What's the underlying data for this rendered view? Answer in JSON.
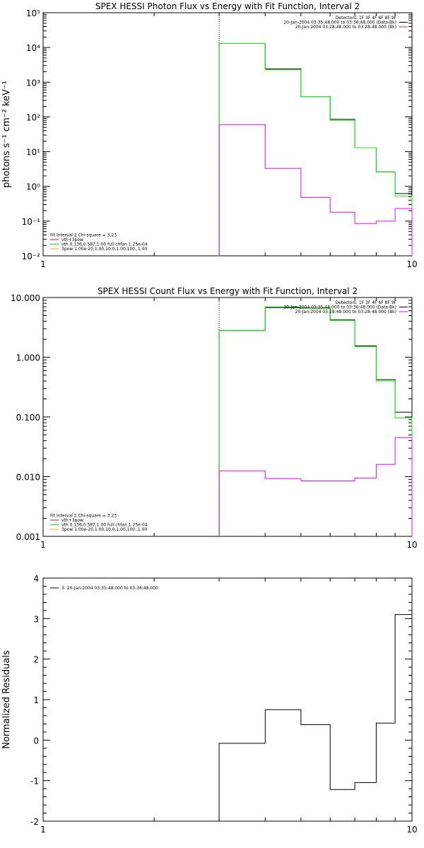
{
  "chart_data": [
    {
      "type": "line",
      "title": "SPEX HESSI Photon Flux vs Energy with Fit Function, Interval 2",
      "ylabel": "photons s⁻¹ cm⁻² keV⁻¹",
      "xlabel": "",
      "x_scale": "log",
      "y_scale": "log",
      "xlim": [
        1,
        10
      ],
      "ylim": [
        0.01,
        100000
      ],
      "x_ticks": [
        "1",
        "10"
      ],
      "y_ticks": [
        "10⁻²",
        "10⁻¹",
        "10⁰",
        "10¹",
        "10²",
        "10³",
        "10⁴",
        "10⁵"
      ],
      "marker_line_x": 3,
      "legend_top": {
        "placement": "top-right",
        "lines": [
          {
            "text": "Detectors: 1F 3F 4F 6F 8F 9F",
            "color": ""
          },
          {
            "text": "20-Jan-2004 03:35:48.000 to 03:36:48.000 (Data-Bk)",
            "color": "#000000"
          },
          {
            "text": "20-Jan-2004 03:28:48.000 to 03:28:48.000 (Bk)",
            "color": "#ff00ff"
          }
        ]
      },
      "legend_bottom": {
        "placement": "bottom-left",
        "lines": [
          {
            "text": "Fit Interval 2    Chi-square = 3.23",
            "color": ""
          },
          {
            "text": "vth+3pow",
            "color": "#ff0000"
          },
          {
            "text": "vth 0.136,0.587,1.00   full chfan 1.25e-04",
            "color": "#00ff00"
          },
          {
            "text": "3pow 1.00e-20,1.00,10.0,1.00,100.,1.00",
            "color": "#ffa500"
          }
        ]
      },
      "series": [
        {
          "color": "#000000",
          "edges": [
            3,
            4,
            5,
            6,
            7,
            8,
            9,
            10
          ],
          "values": [
            13000,
            2400,
            380,
            85,
            13,
            2.6,
            0.62
          ]
        },
        {
          "color": "#00ff00",
          "edges": [
            3,
            4,
            5,
            6,
            7,
            8,
            9,
            10
          ],
          "values": [
            13000,
            2300,
            380,
            80,
            13,
            2.6,
            0.52
          ]
        },
        {
          "color": "#ff00ff",
          "edges": [
            3,
            4,
            5,
            6,
            7,
            8,
            9,
            10
          ],
          "values": [
            60,
            3.3,
            0.48,
            0.18,
            0.085,
            0.1,
            0.23
          ]
        }
      ]
    },
    {
      "type": "line",
      "title": "SPEX HESSI Count Flux vs Energy with Fit Function, Interval 2",
      "ylabel": "",
      "xlabel": "",
      "x_scale": "log",
      "y_scale": "log",
      "xlim": [
        1,
        10
      ],
      "ylim": [
        0.001,
        10
      ],
      "x_ticks": [
        "1",
        "10"
      ],
      "y_ticks": [
        "0.001",
        "0.010",
        "0.100",
        "1.000",
        "10.000"
      ],
      "marker_line_x": 3,
      "legend_top": {
        "placement": "top-right",
        "lines": [
          {
            "text": "Detectors: 1F 3F 4F 6F 8F 9F",
            "color": ""
          },
          {
            "text": "20-Jan-2004 03:35:48.000 to 03:36:48.000 (Data-Bk)",
            "color": "#000000"
          },
          {
            "text": "20-Jan-2004 03:28:48.000 to 03:28:48.000 (Bk)",
            "color": "#ff00ff"
          }
        ]
      },
      "legend_bottom": {
        "placement": "bottom-left",
        "lines": [
          {
            "text": "Fit Interval 2    Chi-square = 3.23",
            "color": ""
          },
          {
            "text": "vth+3pow",
            "color": "#ff0000"
          },
          {
            "text": "vth 0.136,0.587,1.00   full chfan 1.25e-04",
            "color": "#00ff00"
          },
          {
            "text": "3pow 1.00e-20,1.00,10.0,1.00,100.,1.00",
            "color": "#ffa500"
          }
        ]
      },
      "series": [
        {
          "color": "#000000",
          "edges": [
            3,
            4,
            5,
            6,
            7,
            8,
            9,
            10
          ],
          "values": [
            2.8,
            6.8,
            6.7,
            4.2,
            1.55,
            0.42,
            0.12
          ]
        },
        {
          "color": "#00ff00",
          "edges": [
            3,
            4,
            5,
            6,
            7,
            8,
            9,
            10
          ],
          "values": [
            2.8,
            7.0,
            6.6,
            4.1,
            1.5,
            0.4,
            0.096
          ]
        },
        {
          "color": "#ff00ff",
          "edges": [
            3,
            4,
            5,
            6,
            7,
            8,
            9,
            10
          ],
          "values": [
            0.0125,
            0.0093,
            0.0085,
            0.0085,
            0.0095,
            0.016,
            0.045
          ]
        }
      ]
    },
    {
      "type": "line",
      "title": "",
      "ylabel": "Normalized Residuals",
      "xlabel": "",
      "x_scale": "log",
      "y_scale": "linear",
      "xlim": [
        1,
        10
      ],
      "ylim": [
        -2,
        4
      ],
      "x_ticks": [
        "1",
        "10"
      ],
      "y_ticks": [
        "-2",
        "-1",
        "0",
        "1",
        "2",
        "3",
        "4"
      ],
      "legend_top": {
        "placement": "top-left",
        "lines": [
          {
            "text": "3: 20-Jan-2004 03:35:48.000 to 03:36:48.000",
            "color": "#000000"
          }
        ]
      },
      "series": [
        {
          "color": "#000000",
          "edges": [
            3,
            4,
            5,
            6,
            7,
            8,
            9,
            10
          ],
          "values": [
            -0.08,
            0.75,
            0.38,
            -1.22,
            -1.05,
            0.42,
            3.1
          ]
        }
      ]
    }
  ]
}
